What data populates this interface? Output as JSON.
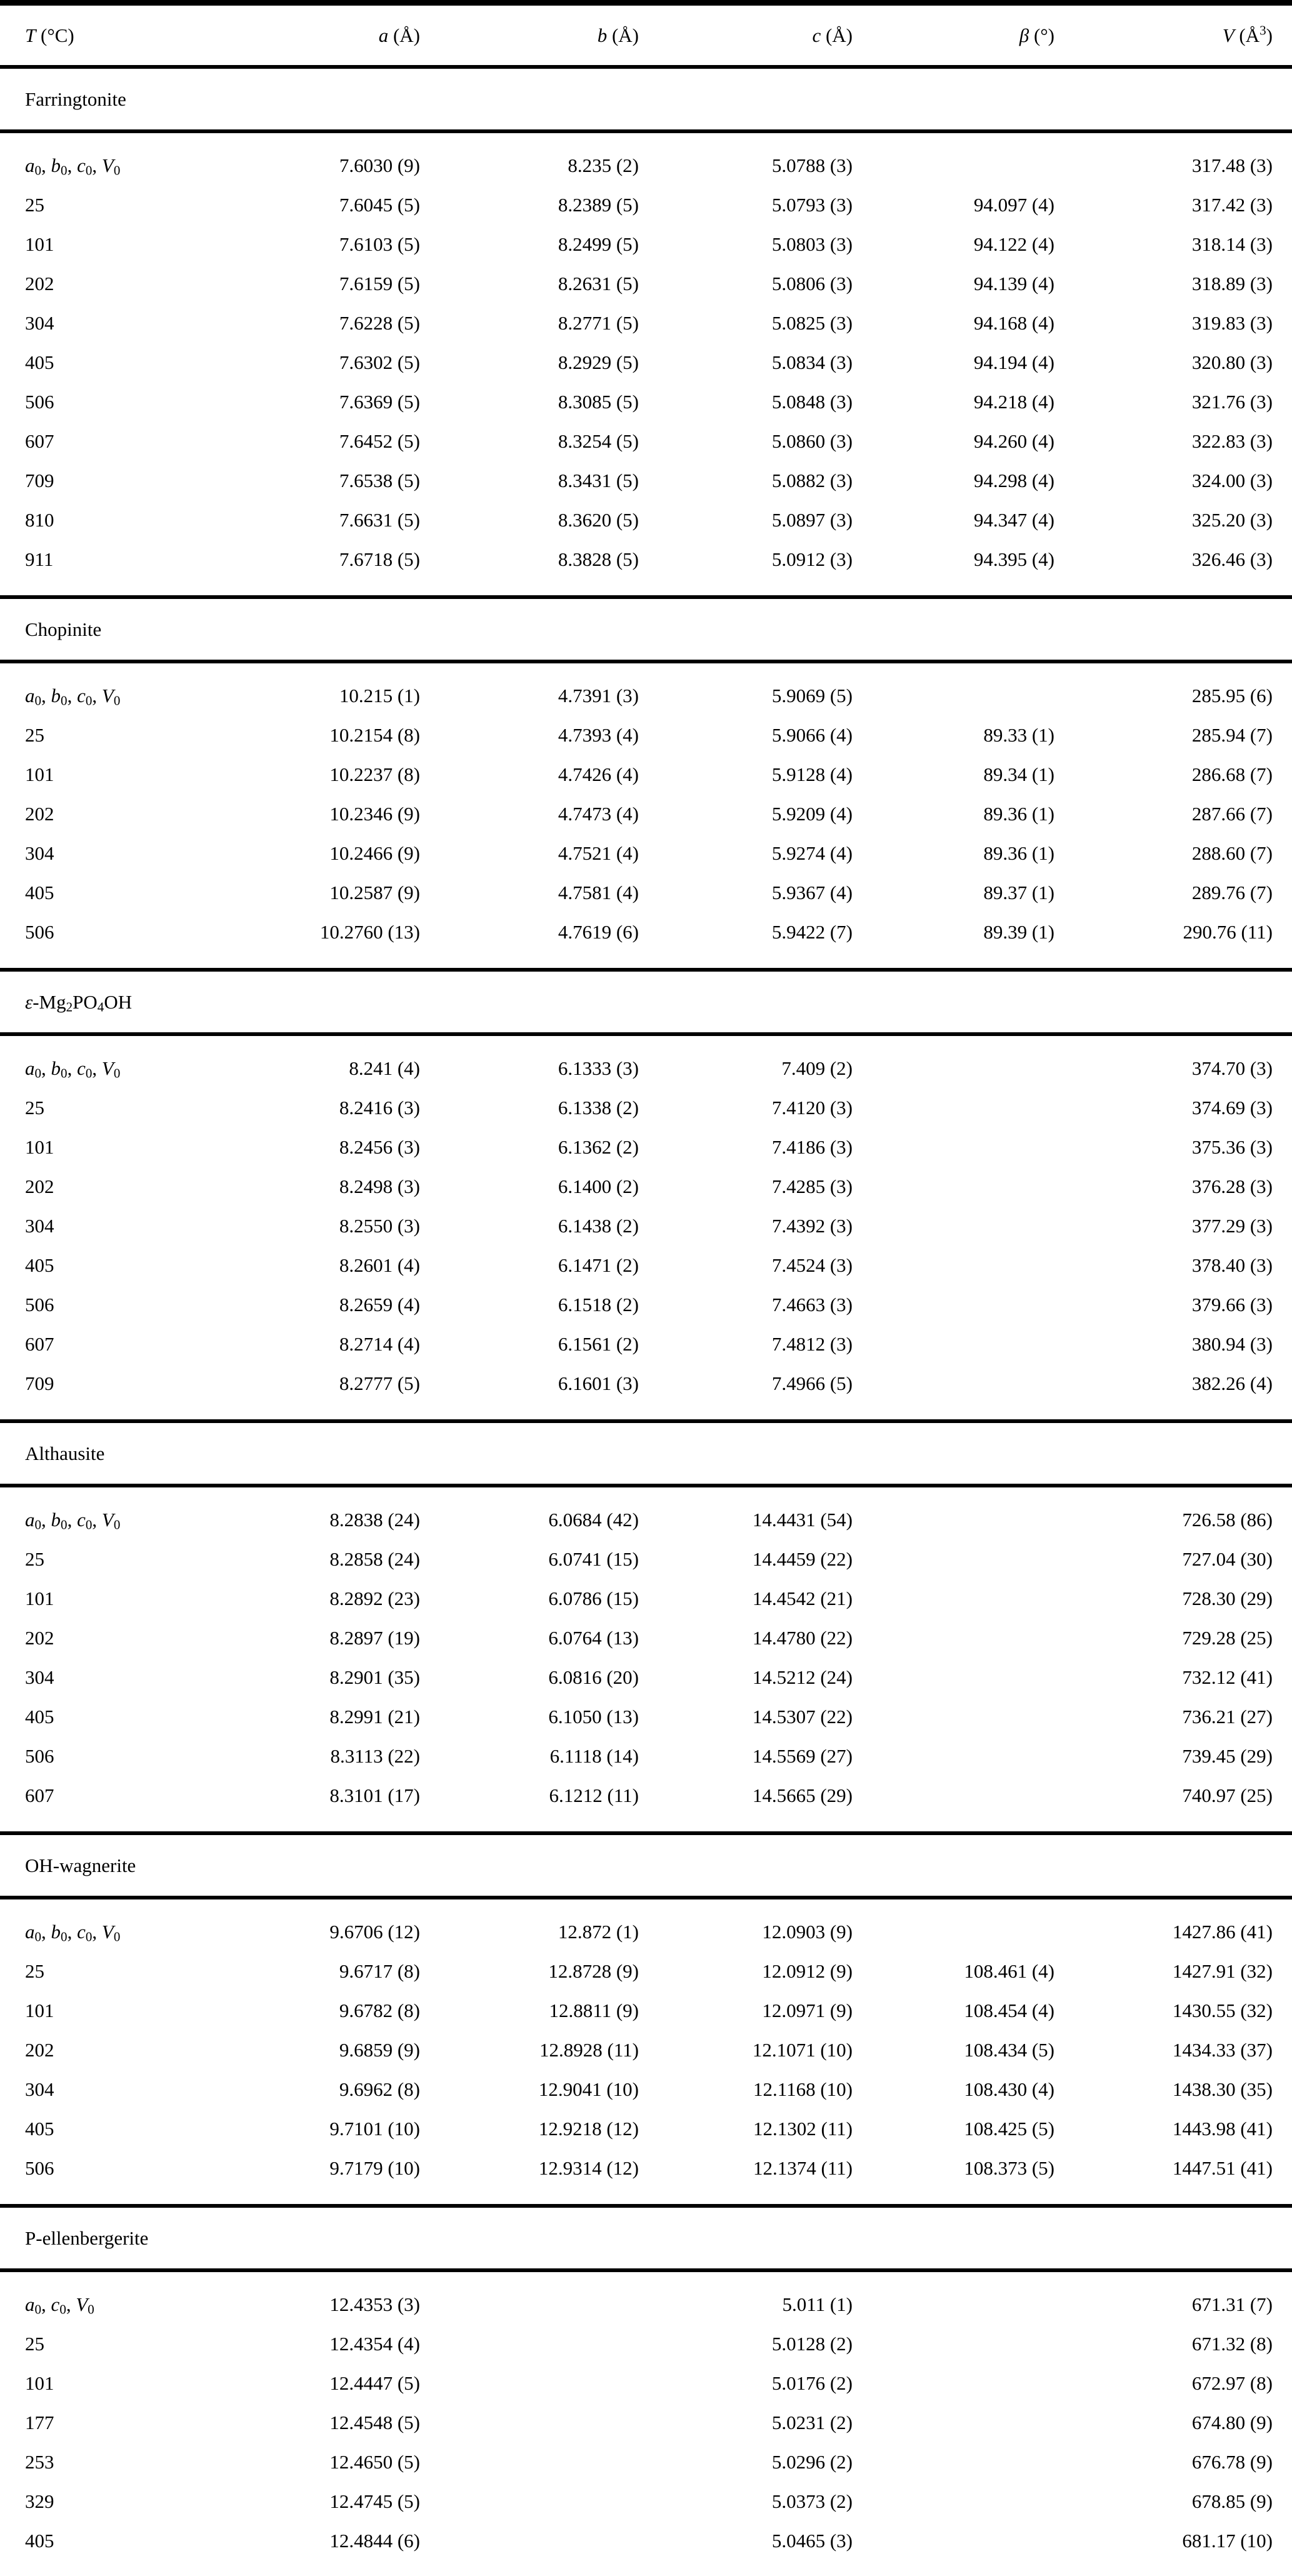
{
  "table": {
    "header": [
      [
        [
          "i",
          "T"
        ],
        [
          "t",
          " (°C)"
        ]
      ],
      [
        [
          "i",
          "a"
        ],
        [
          "t",
          " (Å)"
        ]
      ],
      [
        [
          "i",
          "b"
        ],
        [
          "t",
          " (Å)"
        ]
      ],
      [
        [
          "i",
          "c"
        ],
        [
          "t",
          " (Å)"
        ]
      ],
      [
        [
          "i",
          "β"
        ],
        [
          "t",
          " (°)"
        ]
      ],
      [
        [
          "i",
          "V"
        ],
        [
          "t",
          " (Å"
        ],
        [
          "p",
          "3"
        ],
        [
          "t",
          ")"
        ]
      ]
    ],
    "lattice_label_full": [
      [
        "i",
        "a"
      ],
      [
        "s",
        "0"
      ],
      [
        "t",
        ", "
      ],
      [
        "i",
        "b"
      ],
      [
        "s",
        "0"
      ],
      [
        "t",
        ", "
      ],
      [
        "i",
        "c"
      ],
      [
        "s",
        "0"
      ],
      [
        "t",
        ", "
      ],
      [
        "i",
        "V"
      ],
      [
        "s",
        "0"
      ]
    ],
    "lattice_label_hex": [
      [
        "i",
        "a"
      ],
      [
        "s",
        "0"
      ],
      [
        "t",
        ", "
      ],
      [
        "i",
        "c"
      ],
      [
        "s",
        "0"
      ],
      [
        "t",
        ", "
      ],
      [
        "i",
        "V"
      ],
      [
        "s",
        "0"
      ]
    ],
    "sections": [
      {
        "name_segs": [
          [
            "t",
            "Farringtonite"
          ]
        ],
        "rows": [
          {
            "label_key": "lattice_label_full",
            "cells": [
              "7.6030 (9)",
              "8.235 (2)",
              "5.0788 (3)",
              "",
              "317.48 (3)"
            ]
          },
          {
            "label": "25",
            "cells": [
              "7.6045 (5)",
              "8.2389 (5)",
              "5.0793 (3)",
              "94.097 (4)",
              "317.42 (3)"
            ]
          },
          {
            "label": "101",
            "cells": [
              "7.6103 (5)",
              "8.2499 (5)",
              "5.0803 (3)",
              "94.122 (4)",
              "318.14 (3)"
            ]
          },
          {
            "label": "202",
            "cells": [
              "7.6159 (5)",
              "8.2631 (5)",
              "5.0806 (3)",
              "94.139 (4)",
              "318.89 (3)"
            ]
          },
          {
            "label": "304",
            "cells": [
              "7.6228 (5)",
              "8.2771 (5)",
              "5.0825 (3)",
              "94.168 (4)",
              "319.83 (3)"
            ]
          },
          {
            "label": "405",
            "cells": [
              "7.6302 (5)",
              "8.2929 (5)",
              "5.0834 (3)",
              "94.194 (4)",
              "320.80 (3)"
            ]
          },
          {
            "label": "506",
            "cells": [
              "7.6369 (5)",
              "8.3085 (5)",
              "5.0848 (3)",
              "94.218 (4)",
              "321.76 (3)"
            ]
          },
          {
            "label": "607",
            "cells": [
              "7.6452 (5)",
              "8.3254 (5)",
              "5.0860 (3)",
              "94.260 (4)",
              "322.83 (3)"
            ]
          },
          {
            "label": "709",
            "cells": [
              "7.6538 (5)",
              "8.3431 (5)",
              "5.0882 (3)",
              "94.298 (4)",
              "324.00 (3)"
            ]
          },
          {
            "label": "810",
            "cells": [
              "7.6631 (5)",
              "8.3620 (5)",
              "5.0897 (3)",
              "94.347 (4)",
              "325.20 (3)"
            ]
          },
          {
            "label": "911",
            "cells": [
              "7.6718 (5)",
              "8.3828 (5)",
              "5.0912 (3)",
              "94.395 (4)",
              "326.46 (3)"
            ]
          }
        ]
      },
      {
        "name_segs": [
          [
            "t",
            "Chopinite"
          ]
        ],
        "rows": [
          {
            "label_key": "lattice_label_full",
            "cells": [
              "10.215 (1)",
              "4.7391 (3)",
              "5.9069 (5)",
              "",
              "285.95 (6)"
            ]
          },
          {
            "label": "25",
            "cells": [
              "10.2154 (8)",
              "4.7393 (4)",
              "5.9066 (4)",
              "89.33 (1)",
              "285.94 (7)"
            ]
          },
          {
            "label": "101",
            "cells": [
              "10.2237 (8)",
              "4.7426 (4)",
              "5.9128 (4)",
              "89.34 (1)",
              "286.68 (7)"
            ]
          },
          {
            "label": "202",
            "cells": [
              "10.2346 (9)",
              "4.7473 (4)",
              "5.9209 (4)",
              "89.36 (1)",
              "287.66 (7)"
            ]
          },
          {
            "label": "304",
            "cells": [
              "10.2466 (9)",
              "4.7521 (4)",
              "5.9274 (4)",
              "89.36 (1)",
              "288.60 (7)"
            ]
          },
          {
            "label": "405",
            "cells": [
              "10.2587 (9)",
              "4.7581 (4)",
              "5.9367 (4)",
              "89.37 (1)",
              "289.76 (7)"
            ]
          },
          {
            "label": "506",
            "cells": [
              "10.2760 (13)",
              "4.7619 (6)",
              "5.9422 (7)",
              "89.39 (1)",
              "290.76 (11)"
            ]
          }
        ]
      },
      {
        "name_segs": [
          [
            "i",
            "ε"
          ],
          [
            "t",
            "-Mg"
          ],
          [
            "s",
            "2"
          ],
          [
            "t",
            "PO"
          ],
          [
            "s",
            "4"
          ],
          [
            "t",
            "OH"
          ]
        ],
        "rows": [
          {
            "label_key": "lattice_label_full",
            "cells": [
              "8.241 (4)",
              "6.1333 (3)",
              "7.409 (2)",
              "",
              "374.70 (3)"
            ]
          },
          {
            "label": "25",
            "cells": [
              "8.2416 (3)",
              "6.1338 (2)",
              "7.4120 (3)",
              "",
              "374.69 (3)"
            ]
          },
          {
            "label": "101",
            "cells": [
              "8.2456 (3)",
              "6.1362 (2)",
              "7.4186 (3)",
              "",
              "375.36 (3)"
            ]
          },
          {
            "label": "202",
            "cells": [
              "8.2498 (3)",
              "6.1400 (2)",
              "7.4285 (3)",
              "",
              "376.28 (3)"
            ]
          },
          {
            "label": "304",
            "cells": [
              "8.2550 (3)",
              "6.1438 (2)",
              "7.4392 (3)",
              "",
              "377.29 (3)"
            ]
          },
          {
            "label": "405",
            "cells": [
              "8.2601 (4)",
              "6.1471 (2)",
              "7.4524 (3)",
              "",
              "378.40 (3)"
            ]
          },
          {
            "label": "506",
            "cells": [
              "8.2659 (4)",
              "6.1518 (2)",
              "7.4663 (3)",
              "",
              "379.66 (3)"
            ]
          },
          {
            "label": "607",
            "cells": [
              "8.2714 (4)",
              "6.1561 (2)",
              "7.4812 (3)",
              "",
              "380.94 (3)"
            ]
          },
          {
            "label": "709",
            "cells": [
              "8.2777 (5)",
              "6.1601 (3)",
              "7.4966 (5)",
              "",
              "382.26 (4)"
            ]
          }
        ]
      },
      {
        "name_segs": [
          [
            "t",
            "Althausite"
          ]
        ],
        "rows": [
          {
            "label_key": "lattice_label_full",
            "cells": [
              "8.2838 (24)",
              "6.0684 (42)",
              "14.4431 (54)",
              "",
              "726.58 (86)"
            ]
          },
          {
            "label": "25",
            "cells": [
              "8.2858 (24)",
              "6.0741 (15)",
              "14.4459 (22)",
              "",
              "727.04 (30)"
            ]
          },
          {
            "label": "101",
            "cells": [
              "8.2892 (23)",
              "6.0786 (15)",
              "14.4542 (21)",
              "",
              "728.30 (29)"
            ]
          },
          {
            "label": "202",
            "cells": [
              "8.2897 (19)",
              "6.0764 (13)",
              "14.4780 (22)",
              "",
              "729.28 (25)"
            ]
          },
          {
            "label": "304",
            "cells": [
              "8.2901 (35)",
              "6.0816 (20)",
              "14.5212 (24)",
              "",
              "732.12 (41)"
            ]
          },
          {
            "label": "405",
            "cells": [
              "8.2991 (21)",
              "6.1050 (13)",
              "14.5307 (22)",
              "",
              "736.21 (27)"
            ]
          },
          {
            "label": "506",
            "cells": [
              "8.3113 (22)",
              "6.1118 (14)",
              "14.5569 (27)",
              "",
              "739.45 (29)"
            ]
          },
          {
            "label": "607",
            "cells": [
              "8.3101 (17)",
              "6.1212 (11)",
              "14.5665 (29)",
              "",
              "740.97 (25)"
            ]
          }
        ]
      },
      {
        "name_segs": [
          [
            "t",
            "OH-wagnerite"
          ]
        ],
        "rows": [
          {
            "label_key": "lattice_label_full",
            "cells": [
              "9.6706 (12)",
              "12.872 (1)",
              "12.0903 (9)",
              "",
              "1427.86 (41)"
            ]
          },
          {
            "label": "25",
            "cells": [
              "9.6717 (8)",
              "12.8728 (9)",
              "12.0912 (9)",
              "108.461 (4)",
              "1427.91 (32)"
            ]
          },
          {
            "label": "101",
            "cells": [
              "9.6782 (8)",
              "12.8811 (9)",
              "12.0971 (9)",
              "108.454 (4)",
              "1430.55 (32)"
            ]
          },
          {
            "label": "202",
            "cells": [
              "9.6859 (9)",
              "12.8928 (11)",
              "12.1071 (10)",
              "108.434 (5)",
              "1434.33 (37)"
            ]
          },
          {
            "label": "304",
            "cells": [
              "9.6962 (8)",
              "12.9041 (10)",
              "12.1168 (10)",
              "108.430 (4)",
              "1438.30 (35)"
            ]
          },
          {
            "label": "405",
            "cells": [
              "9.7101 (10)",
              "12.9218 (12)",
              "12.1302 (11)",
              "108.425 (5)",
              "1443.98 (41)"
            ]
          },
          {
            "label": "506",
            "cells": [
              "9.7179 (10)",
              "12.9314 (12)",
              "12.1374 (11)",
              "108.373 (5)",
              "1447.51 (41)"
            ]
          }
        ]
      },
      {
        "name_segs": [
          [
            "t",
            "P-ellenbergerite"
          ]
        ],
        "rows": [
          {
            "label_key": "lattice_label_hex",
            "cells": [
              "12.4353 (3)",
              "",
              "5.011 (1)",
              "",
              "671.31 (7)"
            ]
          },
          {
            "label": "25",
            "cells": [
              "12.4354 (4)",
              "",
              "5.0128 (2)",
              "",
              "671.32 (8)"
            ]
          },
          {
            "label": "101",
            "cells": [
              "12.4447 (5)",
              "",
              "5.0176 (2)",
              "",
              "672.97 (8)"
            ]
          },
          {
            "label": "177",
            "cells": [
              "12.4548 (5)",
              "",
              "5.0231 (2)",
              "",
              "674.80 (9)"
            ]
          },
          {
            "label": "253",
            "cells": [
              "12.4650 (5)",
              "",
              "5.0296 (2)",
              "",
              "676.78 (9)"
            ]
          },
          {
            "label": "329",
            "cells": [
              "12.4745 (5)",
              "",
              "5.0373 (2)",
              "",
              "678.85 (9)"
            ]
          },
          {
            "label": "405",
            "cells": [
              "12.4844 (6)",
              "",
              "5.0465 (3)",
              "",
              "681.17 (10)"
            ]
          }
        ]
      }
    ]
  }
}
